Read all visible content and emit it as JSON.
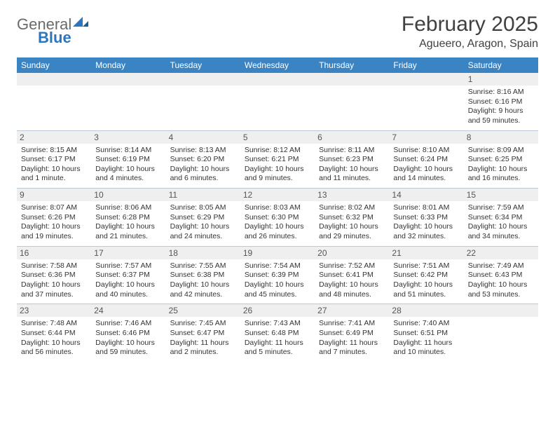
{
  "brand": {
    "word1": "General",
    "word2": "Blue"
  },
  "title": "February 2025",
  "location": "Agueero, Aragon, Spain",
  "colors": {
    "header_bg": "#3b84c4",
    "header_text": "#ffffff",
    "daynum_bg": "#efefef",
    "week_border": "#b9c8d4",
    "brand_gray": "#6a6a6a",
    "brand_blue": "#2b77bd",
    "text": "#333333"
  },
  "day_headers": [
    "Sunday",
    "Monday",
    "Tuesday",
    "Wednesday",
    "Thursday",
    "Friday",
    "Saturday"
  ],
  "font": {
    "body_pt": 10.5,
    "daynum_pt": 12,
    "header_pt": 12,
    "title_pt": 30,
    "location_pt": 16
  },
  "weeks": [
    [
      null,
      null,
      null,
      null,
      null,
      null,
      {
        "n": "1",
        "sunrise": "Sunrise: 8:16 AM",
        "sunset": "Sunset: 6:16 PM",
        "daylight1": "Daylight: 9 hours",
        "daylight2": "and 59 minutes."
      }
    ],
    [
      {
        "n": "2",
        "sunrise": "Sunrise: 8:15 AM",
        "sunset": "Sunset: 6:17 PM",
        "daylight1": "Daylight: 10 hours",
        "daylight2": "and 1 minute."
      },
      {
        "n": "3",
        "sunrise": "Sunrise: 8:14 AM",
        "sunset": "Sunset: 6:19 PM",
        "daylight1": "Daylight: 10 hours",
        "daylight2": "and 4 minutes."
      },
      {
        "n": "4",
        "sunrise": "Sunrise: 8:13 AM",
        "sunset": "Sunset: 6:20 PM",
        "daylight1": "Daylight: 10 hours",
        "daylight2": "and 6 minutes."
      },
      {
        "n": "5",
        "sunrise": "Sunrise: 8:12 AM",
        "sunset": "Sunset: 6:21 PM",
        "daylight1": "Daylight: 10 hours",
        "daylight2": "and 9 minutes."
      },
      {
        "n": "6",
        "sunrise": "Sunrise: 8:11 AM",
        "sunset": "Sunset: 6:23 PM",
        "daylight1": "Daylight: 10 hours",
        "daylight2": "and 11 minutes."
      },
      {
        "n": "7",
        "sunrise": "Sunrise: 8:10 AM",
        "sunset": "Sunset: 6:24 PM",
        "daylight1": "Daylight: 10 hours",
        "daylight2": "and 14 minutes."
      },
      {
        "n": "8",
        "sunrise": "Sunrise: 8:09 AM",
        "sunset": "Sunset: 6:25 PM",
        "daylight1": "Daylight: 10 hours",
        "daylight2": "and 16 minutes."
      }
    ],
    [
      {
        "n": "9",
        "sunrise": "Sunrise: 8:07 AM",
        "sunset": "Sunset: 6:26 PM",
        "daylight1": "Daylight: 10 hours",
        "daylight2": "and 19 minutes."
      },
      {
        "n": "10",
        "sunrise": "Sunrise: 8:06 AM",
        "sunset": "Sunset: 6:28 PM",
        "daylight1": "Daylight: 10 hours",
        "daylight2": "and 21 minutes."
      },
      {
        "n": "11",
        "sunrise": "Sunrise: 8:05 AM",
        "sunset": "Sunset: 6:29 PM",
        "daylight1": "Daylight: 10 hours",
        "daylight2": "and 24 minutes."
      },
      {
        "n": "12",
        "sunrise": "Sunrise: 8:03 AM",
        "sunset": "Sunset: 6:30 PM",
        "daylight1": "Daylight: 10 hours",
        "daylight2": "and 26 minutes."
      },
      {
        "n": "13",
        "sunrise": "Sunrise: 8:02 AM",
        "sunset": "Sunset: 6:32 PM",
        "daylight1": "Daylight: 10 hours",
        "daylight2": "and 29 minutes."
      },
      {
        "n": "14",
        "sunrise": "Sunrise: 8:01 AM",
        "sunset": "Sunset: 6:33 PM",
        "daylight1": "Daylight: 10 hours",
        "daylight2": "and 32 minutes."
      },
      {
        "n": "15",
        "sunrise": "Sunrise: 7:59 AM",
        "sunset": "Sunset: 6:34 PM",
        "daylight1": "Daylight: 10 hours",
        "daylight2": "and 34 minutes."
      }
    ],
    [
      {
        "n": "16",
        "sunrise": "Sunrise: 7:58 AM",
        "sunset": "Sunset: 6:36 PM",
        "daylight1": "Daylight: 10 hours",
        "daylight2": "and 37 minutes."
      },
      {
        "n": "17",
        "sunrise": "Sunrise: 7:57 AM",
        "sunset": "Sunset: 6:37 PM",
        "daylight1": "Daylight: 10 hours",
        "daylight2": "and 40 minutes."
      },
      {
        "n": "18",
        "sunrise": "Sunrise: 7:55 AM",
        "sunset": "Sunset: 6:38 PM",
        "daylight1": "Daylight: 10 hours",
        "daylight2": "and 42 minutes."
      },
      {
        "n": "19",
        "sunrise": "Sunrise: 7:54 AM",
        "sunset": "Sunset: 6:39 PM",
        "daylight1": "Daylight: 10 hours",
        "daylight2": "and 45 minutes."
      },
      {
        "n": "20",
        "sunrise": "Sunrise: 7:52 AM",
        "sunset": "Sunset: 6:41 PM",
        "daylight1": "Daylight: 10 hours",
        "daylight2": "and 48 minutes."
      },
      {
        "n": "21",
        "sunrise": "Sunrise: 7:51 AM",
        "sunset": "Sunset: 6:42 PM",
        "daylight1": "Daylight: 10 hours",
        "daylight2": "and 51 minutes."
      },
      {
        "n": "22",
        "sunrise": "Sunrise: 7:49 AM",
        "sunset": "Sunset: 6:43 PM",
        "daylight1": "Daylight: 10 hours",
        "daylight2": "and 53 minutes."
      }
    ],
    [
      {
        "n": "23",
        "sunrise": "Sunrise: 7:48 AM",
        "sunset": "Sunset: 6:44 PM",
        "daylight1": "Daylight: 10 hours",
        "daylight2": "and 56 minutes."
      },
      {
        "n": "24",
        "sunrise": "Sunrise: 7:46 AM",
        "sunset": "Sunset: 6:46 PM",
        "daylight1": "Daylight: 10 hours",
        "daylight2": "and 59 minutes."
      },
      {
        "n": "25",
        "sunrise": "Sunrise: 7:45 AM",
        "sunset": "Sunset: 6:47 PM",
        "daylight1": "Daylight: 11 hours",
        "daylight2": "and 2 minutes."
      },
      {
        "n": "26",
        "sunrise": "Sunrise: 7:43 AM",
        "sunset": "Sunset: 6:48 PM",
        "daylight1": "Daylight: 11 hours",
        "daylight2": "and 5 minutes."
      },
      {
        "n": "27",
        "sunrise": "Sunrise: 7:41 AM",
        "sunset": "Sunset: 6:49 PM",
        "daylight1": "Daylight: 11 hours",
        "daylight2": "and 7 minutes."
      },
      {
        "n": "28",
        "sunrise": "Sunrise: 7:40 AM",
        "sunset": "Sunset: 6:51 PM",
        "daylight1": "Daylight: 11 hours",
        "daylight2": "and 10 minutes."
      },
      null
    ]
  ]
}
